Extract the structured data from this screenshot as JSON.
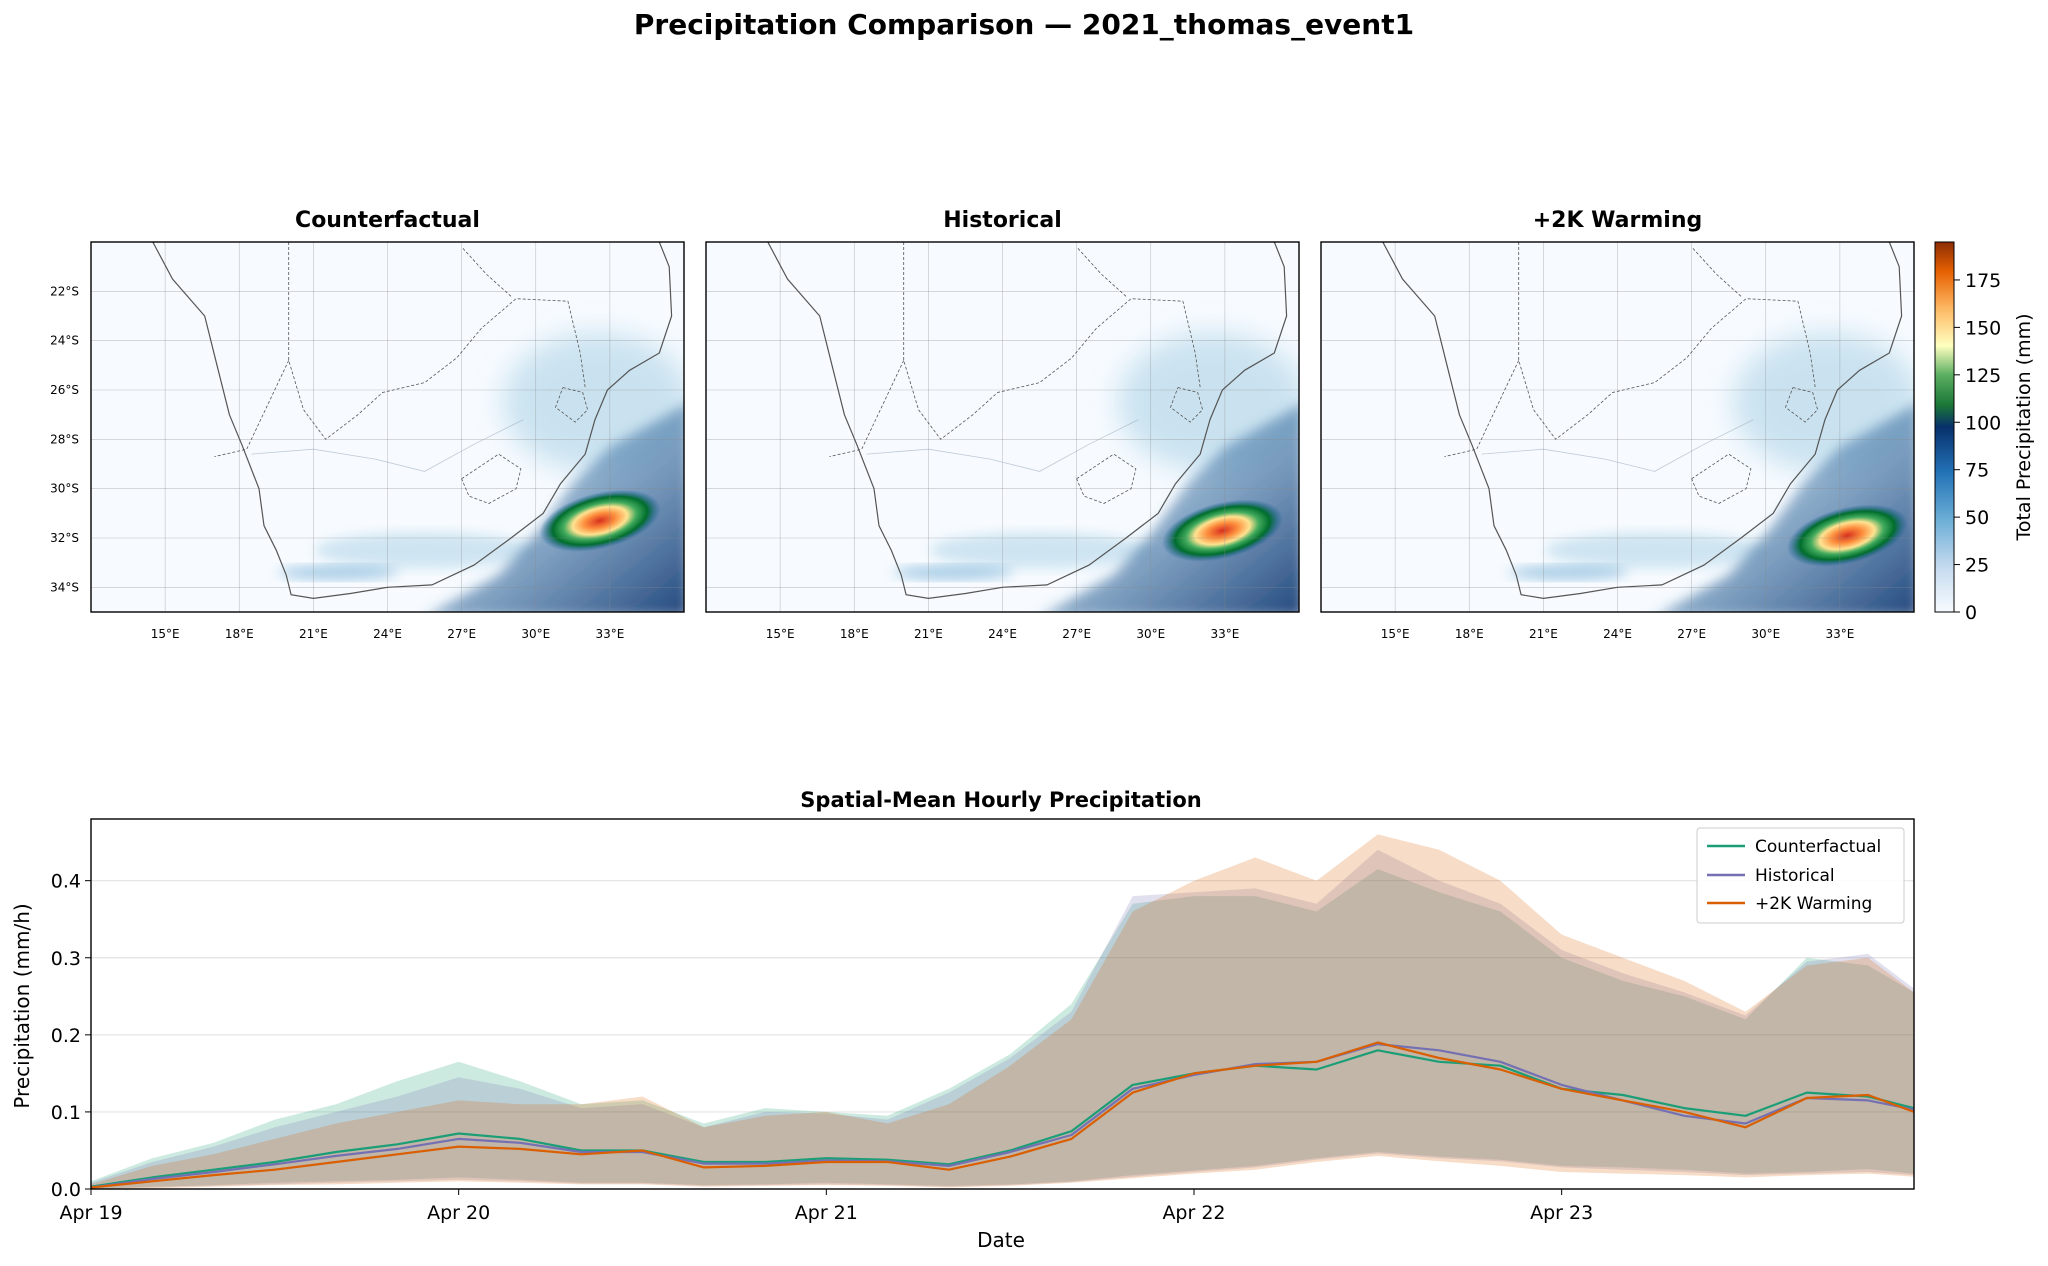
{
  "title": "Precipitation Comparison — 2021_thomas_event1",
  "maps": {
    "panels": [
      {
        "title": "Counterfactual",
        "peak": {
          "lon": 32.6,
          "lat": -31.3,
          "value": 180
        }
      },
      {
        "title": "Historical",
        "peak": {
          "lon": 32.9,
          "lat": -31.7,
          "value": 175
        }
      },
      {
        "title": "+2K Warming",
        "peak": {
          "lon": 33.3,
          "lat": -31.9,
          "value": 170
        }
      }
    ],
    "lat_ticks": [
      "22°S",
      "24°S",
      "26°S",
      "28°S",
      "30°S",
      "32°S",
      "34°S"
    ],
    "lon_ticks": [
      "15°E",
      "18°E",
      "21°E",
      "24°E",
      "27°E",
      "30°E",
      "33°E"
    ],
    "extent": {
      "lon": [
        12,
        36
      ],
      "lat": [
        -35,
        -20
      ]
    },
    "colorbar": {
      "label": "Total Precipitation (mm)",
      "ticks": [
        "0",
        "25",
        "50",
        "75",
        "100",
        "125",
        "150",
        "175"
      ],
      "range": [
        0,
        195
      ]
    }
  },
  "chart_data": {
    "type": "line",
    "title": "Spatial-Mean Hourly Precipitation",
    "xlabel": "Date",
    "ylabel": "Precipitation (mm/h)",
    "x": [
      0,
      4,
      8,
      12,
      16,
      20,
      24,
      28,
      32,
      36,
      40,
      44,
      48,
      52,
      56,
      60,
      64,
      68,
      72,
      76,
      80,
      84,
      88,
      92,
      96,
      100,
      104,
      108,
      112,
      116,
      119
    ],
    "x_unit": "hours since Apr 19 00:00",
    "x_ticks": [
      "Apr 19",
      "Apr 20",
      "Apr 21",
      "Apr 22",
      "Apr 23"
    ],
    "x_tick_positions": [
      0,
      24,
      48,
      72,
      96
    ],
    "xlim": [
      0,
      119
    ],
    "ylim": [
      0,
      0.48
    ],
    "y_ticks": [
      "0.0",
      "0.1",
      "0.2",
      "0.3",
      "0.4"
    ],
    "grid": "horizontal",
    "legend_position": "top-right",
    "series": [
      {
        "name": "Counterfactual",
        "color": "#1b9e77",
        "mean": [
          0.003,
          0.015,
          0.025,
          0.035,
          0.048,
          0.058,
          0.072,
          0.065,
          0.05,
          0.05,
          0.035,
          0.035,
          0.04,
          0.038,
          0.032,
          0.05,
          0.075,
          0.135,
          0.15,
          0.16,
          0.155,
          0.18,
          0.165,
          0.16,
          0.13,
          0.122,
          0.105,
          0.095,
          0.125,
          0.12,
          0.105
        ],
        "upper": [
          0.01,
          0.04,
          0.06,
          0.09,
          0.11,
          0.14,
          0.165,
          0.14,
          0.11,
          0.115,
          0.085,
          0.105,
          0.1,
          0.095,
          0.13,
          0.175,
          0.24,
          0.37,
          0.38,
          0.38,
          0.36,
          0.415,
          0.385,
          0.36,
          0.3,
          0.27,
          0.25,
          0.22,
          0.3,
          0.29,
          0.255
        ],
        "lower": [
          0.0,
          0.003,
          0.005,
          0.008,
          0.01,
          0.012,
          0.015,
          0.012,
          0.008,
          0.008,
          0.005,
          0.006,
          0.008,
          0.006,
          0.004,
          0.006,
          0.01,
          0.018,
          0.024,
          0.03,
          0.04,
          0.048,
          0.042,
          0.038,
          0.03,
          0.028,
          0.025,
          0.02,
          0.022,
          0.026,
          0.02
        ]
      },
      {
        "name": "Historical",
        "color": "#7570b3",
        "mean": [
          0.002,
          0.013,
          0.022,
          0.032,
          0.043,
          0.052,
          0.065,
          0.06,
          0.048,
          0.048,
          0.033,
          0.033,
          0.037,
          0.036,
          0.03,
          0.048,
          0.07,
          0.13,
          0.148,
          0.162,
          0.165,
          0.188,
          0.18,
          0.165,
          0.135,
          0.115,
          0.095,
          0.085,
          0.118,
          0.115,
          0.103
        ],
        "upper": [
          0.008,
          0.035,
          0.055,
          0.08,
          0.1,
          0.12,
          0.145,
          0.13,
          0.105,
          0.11,
          0.08,
          0.1,
          0.098,
          0.09,
          0.125,
          0.17,
          0.23,
          0.38,
          0.385,
          0.39,
          0.37,
          0.44,
          0.4,
          0.37,
          0.31,
          0.28,
          0.255,
          0.225,
          0.295,
          0.305,
          0.26
        ],
        "lower": [
          0.0,
          0.002,
          0.004,
          0.006,
          0.008,
          0.01,
          0.012,
          0.01,
          0.007,
          0.007,
          0.004,
          0.005,
          0.006,
          0.005,
          0.003,
          0.005,
          0.009,
          0.016,
          0.022,
          0.028,
          0.038,
          0.046,
          0.04,
          0.036,
          0.028,
          0.025,
          0.022,
          0.018,
          0.02,
          0.022,
          0.018
        ]
      },
      {
        "name": "+2K Warming",
        "color": "#d95f02",
        "mean": [
          0.002,
          0.01,
          0.018,
          0.025,
          0.035,
          0.045,
          0.055,
          0.052,
          0.045,
          0.05,
          0.028,
          0.03,
          0.035,
          0.035,
          0.025,
          0.042,
          0.065,
          0.125,
          0.15,
          0.16,
          0.165,
          0.19,
          0.17,
          0.155,
          0.13,
          0.115,
          0.1,
          0.08,
          0.118,
          0.122,
          0.1
        ],
        "upper": [
          0.006,
          0.03,
          0.045,
          0.065,
          0.085,
          0.1,
          0.115,
          0.11,
          0.11,
          0.12,
          0.08,
          0.095,
          0.1,
          0.085,
          0.11,
          0.16,
          0.22,
          0.36,
          0.4,
          0.43,
          0.4,
          0.46,
          0.44,
          0.4,
          0.33,
          0.3,
          0.27,
          0.23,
          0.29,
          0.3,
          0.255
        ],
        "lower": [
          0.0,
          0.001,
          0.003,
          0.005,
          0.006,
          0.008,
          0.01,
          0.008,
          0.006,
          0.006,
          0.003,
          0.004,
          0.005,
          0.004,
          0.002,
          0.004,
          0.008,
          0.014,
          0.02,
          0.025,
          0.035,
          0.043,
          0.036,
          0.03,
          0.022,
          0.02,
          0.018,
          0.015,
          0.018,
          0.02,
          0.016
        ]
      }
    ]
  }
}
